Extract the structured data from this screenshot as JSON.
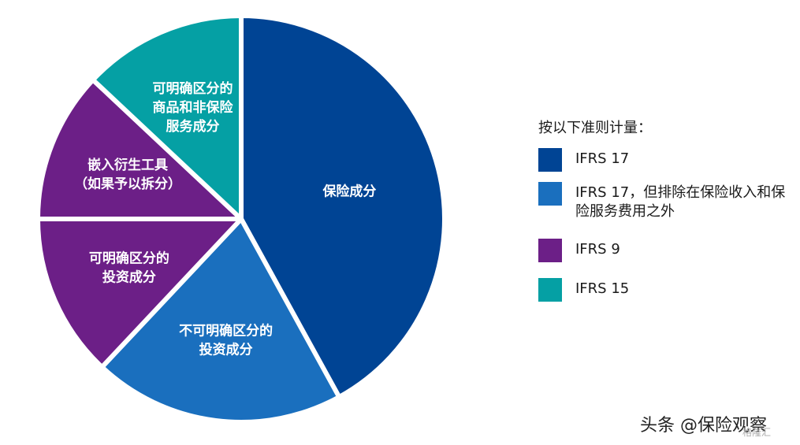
{
  "chart_data": {
    "type": "pie",
    "slices": [
      {
        "label_lines": [
          "保险成分"
        ],
        "value": 42,
        "color": "#004494"
      },
      {
        "label_lines": [
          "不可明确区分的",
          "投资成分"
        ],
        "value": 20,
        "color": "#1A6FBE"
      },
      {
        "label_lines": [
          "可明确区分的",
          "投资成分"
        ],
        "value": 13,
        "color": "#6C1F87"
      },
      {
        "label_lines": [
          "嵌入衍生工具",
          "（如果予以拆分）"
        ],
        "value": 12,
        "color": "#6C1F87"
      },
      {
        "label_lines": [
          "可明确区分的",
          "商品和非保险",
          "服务成分"
        ],
        "value": 13,
        "color": "#05A0A4"
      }
    ],
    "legend": {
      "title": "按以下准则计量：",
      "placement": "right",
      "items": [
        {
          "label": "IFRS 17",
          "color": "#004494"
        },
        {
          "label": "IFRS 17，但排除在保险收入和保险服务费用之外",
          "color": "#1A6FBE"
        },
        {
          "label": "IFRS 9",
          "color": "#6C1F87"
        },
        {
          "label": "IFRS 15",
          "color": "#05A0A4"
        }
      ]
    }
  },
  "watermark": {
    "text": "头条 @保险观察",
    "sub": "格隆汇"
  }
}
